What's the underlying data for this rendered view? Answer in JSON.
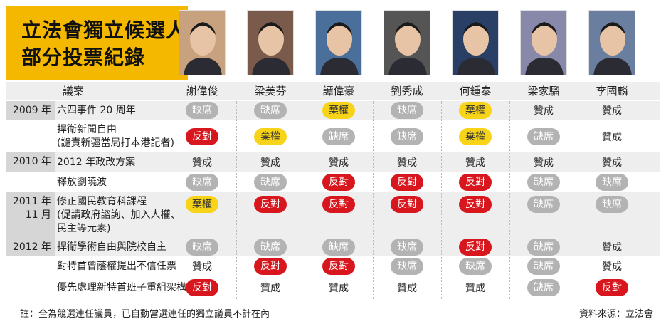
{
  "title": {
    "line1": "立法會獨立候選人",
    "line2": "部分投票紀錄"
  },
  "header": {
    "bill_label": "議案"
  },
  "members": [
    "謝偉俊",
    "梁美芬",
    "譚偉豪",
    "劉秀成",
    "何鍾泰",
    "梁家騮",
    "李國麟"
  ],
  "rows": [
    {
      "year": "2009 年",
      "bill": [
        "六四事件 20 周年"
      ],
      "votes": [
        "缺席",
        "缺席",
        "棄權",
        "缺席",
        "棄權",
        "贊成",
        "贊成"
      ]
    },
    {
      "year": "",
      "bill": [
        "捍衛新聞自由",
        "(譴責新疆當局打本港記者)"
      ],
      "votes": [
        "反對",
        "棄權",
        "缺席",
        "缺席",
        "棄權",
        "缺席",
        "贊成"
      ]
    },
    {
      "year": "2010 年",
      "bill": [
        "2012 年政改方案"
      ],
      "votes": [
        "贊成",
        "贊成",
        "贊成",
        "贊成",
        "贊成",
        "贊成",
        "贊成"
      ]
    },
    {
      "year": "",
      "bill": [
        "釋放劉曉波"
      ],
      "votes": [
        "缺席",
        "缺席",
        "反對",
        "反對",
        "反對",
        "缺席",
        "缺席"
      ]
    },
    {
      "year": "2011 年\n11 月",
      "bill": [
        "修正國民教育科課程",
        "(促請政府諮詢、加入人權、",
        "民主等元素)"
      ],
      "votes": [
        "棄權",
        "反對",
        "反對",
        "反對",
        "反對",
        "缺席",
        "缺席"
      ]
    },
    {
      "year": "2012 年",
      "bill": [
        "捍衛學術自由與院校自主"
      ],
      "votes": [
        "缺席",
        "缺席",
        "缺席",
        "缺席",
        "反對",
        "缺席",
        "贊成"
      ]
    },
    {
      "year": "",
      "bill": [
        "對特首曾蔭權提出不信任票"
      ],
      "votes": [
        "贊成",
        "反對",
        "反對",
        "缺席",
        "缺席",
        "缺席",
        "贊成"
      ]
    },
    {
      "year": "",
      "bill": [
        "優先處理新特首班子重組架構"
      ],
      "votes": [
        "反對",
        "贊成",
        "贊成",
        "贊成",
        "贊成",
        "缺席",
        "反對"
      ]
    }
  ],
  "footnote": "註：全為競選連任議員，已自動當選連任的獨立議員不計在內",
  "source": "資料來源：立法會",
  "colors": {
    "title_bg": "#f4b800",
    "absent": "#b3b3b3",
    "against": "#d8161d",
    "abstain": "#f7d417",
    "shade": "#eeeeee"
  }
}
